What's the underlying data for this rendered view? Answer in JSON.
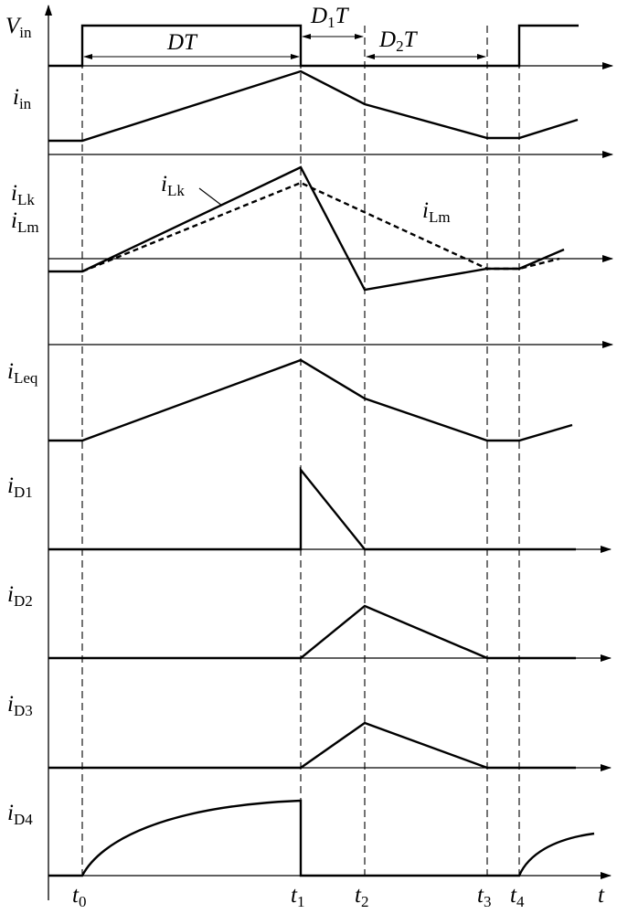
{
  "signals": {
    "vin": {
      "main": "V",
      "sub": "in"
    },
    "iin": {
      "main": "i",
      "sub": "in"
    },
    "ilk": {
      "main": "i",
      "sub": "Lk"
    },
    "ilm": {
      "main": "i",
      "sub": "Lm"
    },
    "ileq": {
      "main": "i",
      "sub": "Leq"
    },
    "id1": {
      "main": "i",
      "sub": "D1"
    },
    "id2": {
      "main": "i",
      "sub": "D2"
    },
    "id3": {
      "main": "i",
      "sub": "D3"
    },
    "id4": {
      "main": "i",
      "sub": "D4"
    }
  },
  "intervals": {
    "dt": "DT",
    "d1t": {
      "pre": "D",
      "sub": "1",
      "post": "T"
    },
    "d2t": {
      "pre": "D",
      "sub": "2",
      "post": "T"
    }
  },
  "times": {
    "t0": {
      "main": "t",
      "sub": "0"
    },
    "t1": {
      "main": "t",
      "sub": "1"
    },
    "t2": {
      "main": "t",
      "sub": "2"
    },
    "t3": {
      "main": "t",
      "sub": "3"
    },
    "t4": {
      "main": "t",
      "sub": "4"
    },
    "axis": "t"
  }
}
